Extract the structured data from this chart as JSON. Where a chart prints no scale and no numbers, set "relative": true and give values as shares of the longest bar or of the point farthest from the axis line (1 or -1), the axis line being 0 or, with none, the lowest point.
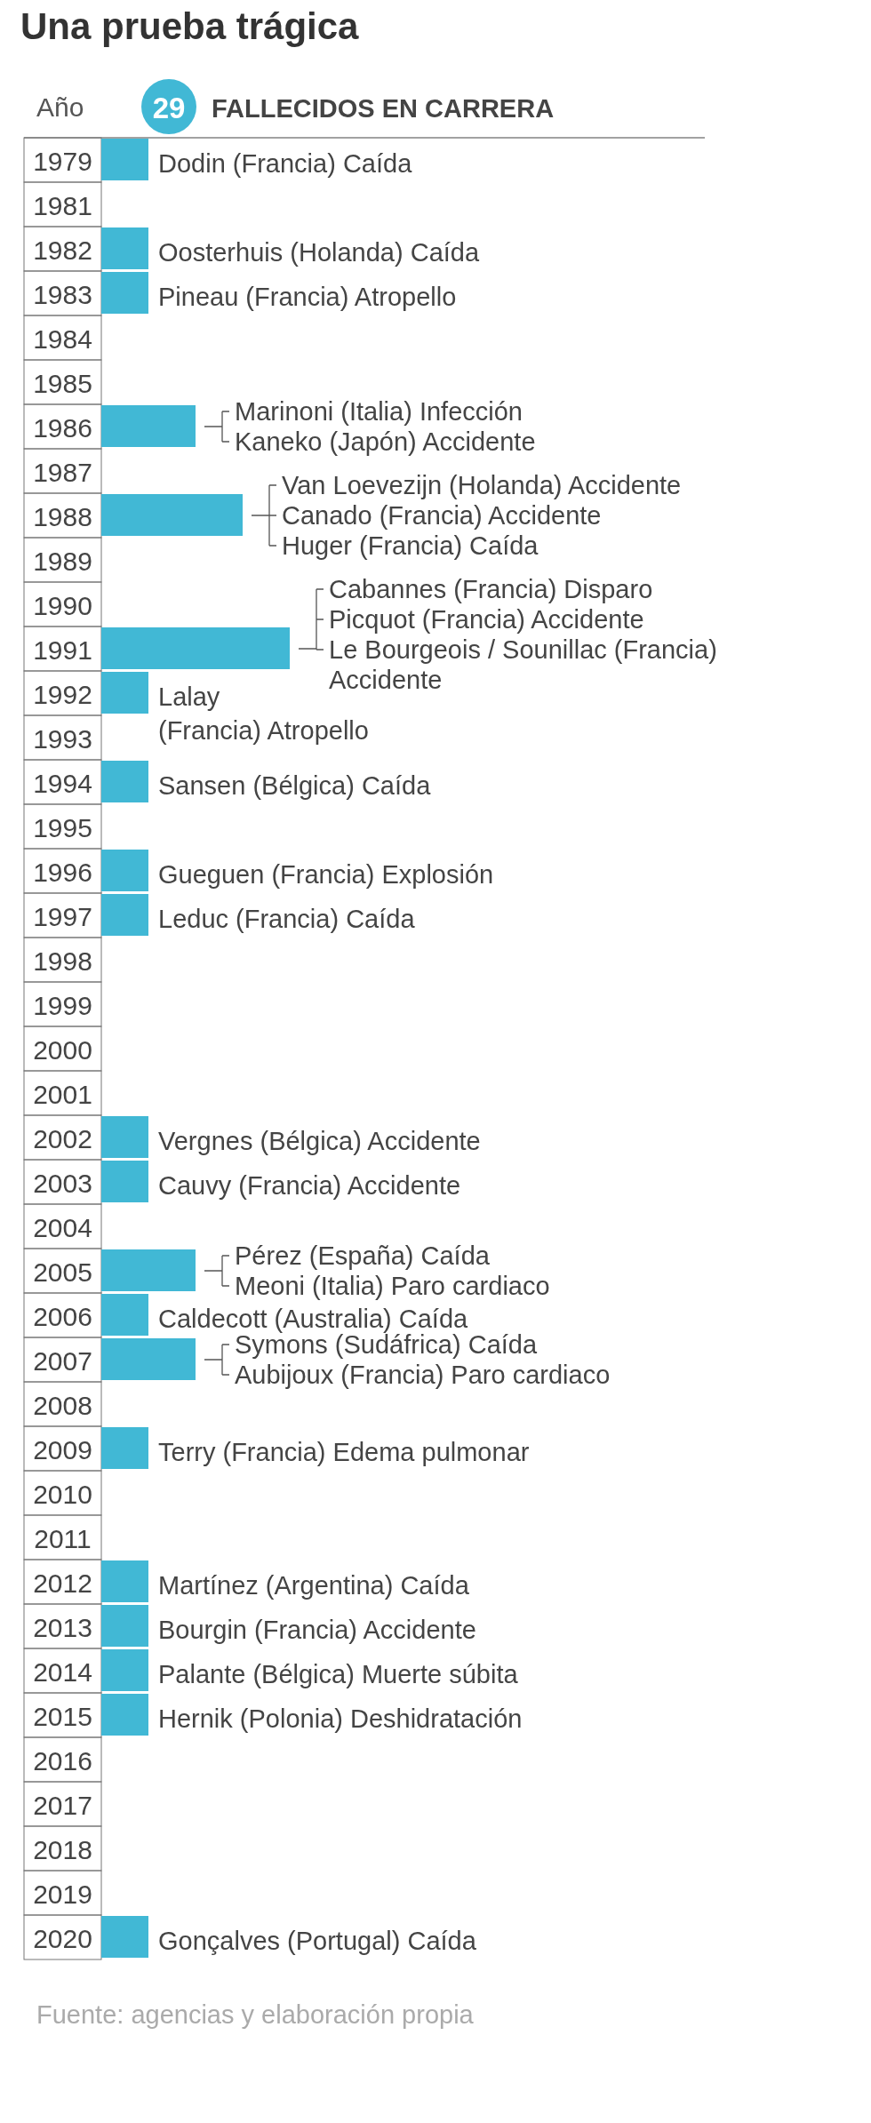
{
  "chart_data": {
    "type": "bar",
    "orientation": "horizontal",
    "relative": true,
    "title": "Una prueba trágica",
    "ylabel": "Año",
    "legend": "top",
    "categories": [
      "1979",
      "1981",
      "1982",
      "1983",
      "1984",
      "1985",
      "1986",
      "1987",
      "1988",
      "1989",
      "1990",
      "1991",
      "1992",
      "1993",
      "1994",
      "1995",
      "1996",
      "1997",
      "1998",
      "1999",
      "2000",
      "2001",
      "2002",
      "2003",
      "2004",
      "2005",
      "2006",
      "2007",
      "2008",
      "2009",
      "2010",
      "2011",
      "2012",
      "2013",
      "2014",
      "2015",
      "2016",
      "2017",
      "2018",
      "2019",
      "2020"
    ],
    "series": [
      {
        "name": "FALLECIDOS EN CARRERA",
        "color": "#41b8d5",
        "values": [
          0.25,
          0,
          0.25,
          0.25,
          0,
          0,
          0.5,
          0,
          0.75,
          0,
          0,
          1,
          0.25,
          0,
          0.25,
          0,
          0.25,
          0.25,
          0,
          0,
          0,
          0,
          0.25,
          0.25,
          0,
          0.5,
          0.25,
          0.5,
          0,
          0.25,
          0,
          0,
          0.25,
          0.25,
          0.25,
          0.25,
          0,
          0,
          0,
          0,
          0.25
        ]
      }
    ],
    "annotations": [
      "29",
      "Fuente: agencias y elaboración propia",
      {
        "text": "Dodin (Francia) Caída",
        "x": 0.25,
        "y": "1979"
      },
      {
        "text": "Oosterhuis (Holanda) Caída",
        "x": 0.25,
        "y": "1982"
      },
      {
        "text": "Pineau (Francia) Atropello",
        "x": 0.25,
        "y": "1983"
      },
      {
        "text": "Marinoni (Italia) Infección",
        "x": 0.5,
        "y": "1986"
      },
      {
        "text": "Kaneko (Japón) Accidente",
        "x": 0.5,
        "y": "1986"
      },
      {
        "text": "Van Loevezijn (Holanda) Accidente",
        "x": 0.75,
        "y": "1988"
      },
      {
        "text": "Canado (Francia) Accidente",
        "x": 0.75,
        "y": "1988"
      },
      {
        "text": "Huger (Francia) Caída",
        "x": 0.75,
        "y": "1988"
      },
      {
        "text": "Cabannes (Francia) Disparo",
        "x": 1,
        "y": "1991"
      },
      {
        "text": "Picquot (Francia) Accidente",
        "x": 1,
        "y": "1991"
      },
      {
        "text": "Le Bourgeois / Sounillac (Francia) Accidente",
        "x": 1,
        "y": "1991"
      },
      {
        "text": "Lalay (Francia) Atropello",
        "x": 0.25,
        "y": "1992"
      },
      {
        "text": "Sansen (Bélgica) Caída",
        "x": 0.25,
        "y": "1994"
      },
      {
        "text": "Gueguen (Francia) Explosión",
        "x": 0.25,
        "y": "1996"
      },
      {
        "text": "Leduc (Francia) Caída",
        "x": 0.25,
        "y": "1997"
      },
      {
        "text": "Vergnes (Bélgica) Accidente",
        "x": 0.25,
        "y": "2002"
      },
      {
        "text": "Cauvy (Francia) Accidente",
        "x": 0.25,
        "y": "2003"
      },
      {
        "text": "Pérez (España) Caída",
        "x": 0.5,
        "y": "2005"
      },
      {
        "text": "Meoni (Italia) Paro cardiaco",
        "x": 0.5,
        "y": "2005"
      },
      {
        "text": "Caldecott (Australia) Caída",
        "x": 0.25,
        "y": "2006"
      },
      {
        "text": "Symons (Sudáfrica) Caída",
        "x": 0.5,
        "y": "2007"
      },
      {
        "text": "Aubijoux (Francia) Paro cardiaco",
        "x": 0.5,
        "y": "2007"
      },
      {
        "text": "Terry (Francia) Edema pulmonar",
        "x": 0.25,
        "y": "2009"
      },
      {
        "text": "Martínez (Argentina) Caída",
        "x": 0.25,
        "y": "2012"
      },
      {
        "text": "Bourgin (Francia) Accidente",
        "x": 0.25,
        "y": "2013"
      },
      {
        "text": "Palante (Bélgica) Muerte súbita",
        "x": 0.25,
        "y": "2014"
      },
      {
        "text": "Hernik (Polonia) Deshidratación",
        "x": 0.25,
        "y": "2015"
      },
      {
        "text": "Gonçalves (Portugal) Caída",
        "x": 0.25,
        "y": "2020"
      }
    ]
  }
}
